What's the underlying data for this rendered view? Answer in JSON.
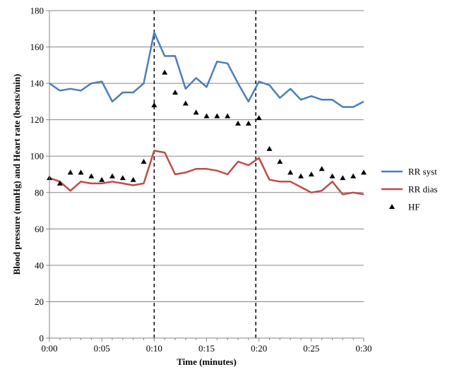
{
  "chart_data": {
    "type": "line",
    "xlabel": "Time (minutes)",
    "ylabel": "Blood pressure (mmHg) and Heart rate (beats/min)",
    "x_unit": "minutes",
    "xlim": [
      0,
      30
    ],
    "ylim": [
      0,
      180
    ],
    "y_ticks": [
      0,
      20,
      40,
      60,
      80,
      100,
      120,
      140,
      160,
      180
    ],
    "x_ticks": [
      0,
      5,
      10,
      15,
      20,
      25,
      30
    ],
    "x_tick_labels": [
      "0:00",
      "0:05",
      "0:10",
      "0:15",
      "0:20",
      "0:25",
      "0:30"
    ],
    "grid": "horizontal",
    "legend_position": "right",
    "reference_lines_x": [
      10,
      19.7
    ],
    "x": [
      0,
      1,
      2,
      3,
      4,
      5,
      6,
      7,
      8,
      9,
      10,
      11,
      12,
      13,
      14,
      15,
      16,
      17,
      18,
      19,
      20,
      21,
      22,
      23,
      24,
      25,
      26,
      27,
      28,
      29,
      30
    ],
    "series": [
      {
        "name": "RR syst",
        "style": "line",
        "color": "#4a7ebb",
        "values": [
          140,
          136,
          137,
          136,
          140,
          141,
          130,
          135,
          135,
          140,
          168,
          155,
          155,
          137,
          143,
          138,
          152,
          151,
          140,
          130,
          141,
          139,
          132,
          137,
          131,
          133,
          131,
          131,
          127,
          127,
          130
        ]
      },
      {
        "name": "RR dias",
        "style": "line",
        "color": "#be4b48",
        "values": [
          88,
          86,
          81,
          86,
          85,
          85,
          86,
          85,
          84,
          85,
          103,
          102,
          90,
          91,
          93,
          93,
          92,
          90,
          97,
          95,
          99,
          87,
          86,
          86,
          83,
          80,
          81,
          86,
          79,
          80,
          79
        ]
      },
      {
        "name": "HF",
        "style": "marker",
        "marker": "triangle",
        "color": "#000000",
        "values": [
          88,
          85,
          91,
          91,
          89,
          87,
          89,
          88,
          87,
          97,
          128,
          146,
          135,
          129,
          124,
          122,
          122,
          122,
          118,
          118,
          121,
          104,
          97,
          91,
          89,
          90,
          93,
          89,
          88,
          89,
          91
        ]
      }
    ]
  }
}
